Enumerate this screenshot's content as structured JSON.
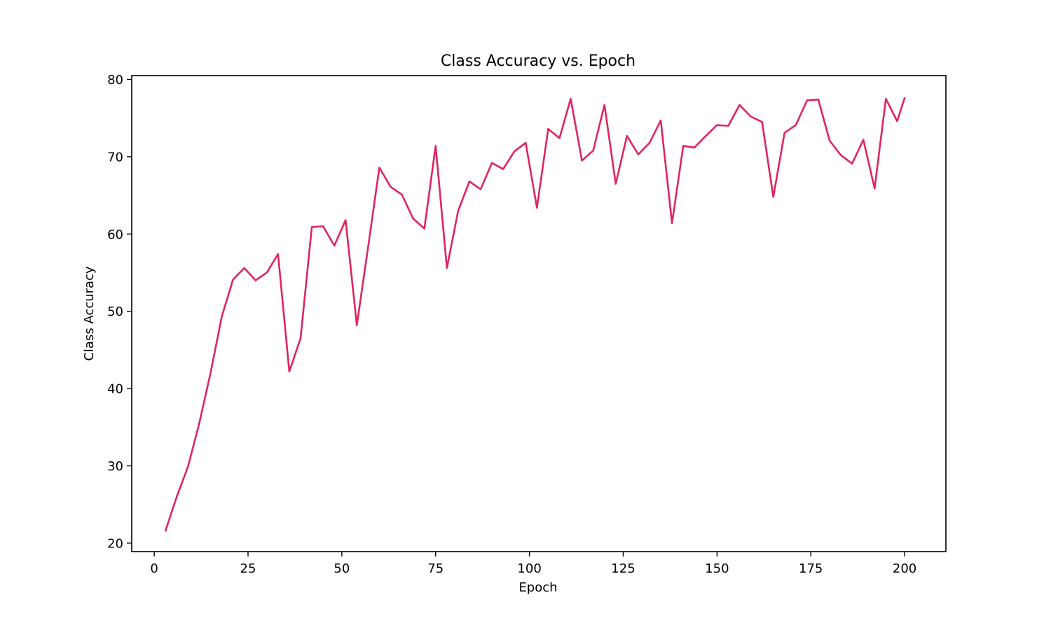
{
  "chart_data": {
    "type": "line",
    "title": "Class Accuracy vs. Epoch",
    "xlabel": "Epoch",
    "ylabel": "Class Accuracy",
    "xlim": [
      -6,
      211
    ],
    "ylim": [
      18.9,
      80.5
    ],
    "xticks": [
      0,
      25,
      50,
      75,
      100,
      125,
      150,
      175,
      200
    ],
    "yticks": [
      20,
      30,
      40,
      50,
      60,
      70,
      80
    ],
    "grid": false,
    "legend": "none",
    "series": [
      {
        "color": "#e0245e",
        "x": [
          3,
          6,
          9,
          12,
          15,
          18,
          21,
          24,
          27,
          30,
          33,
          36,
          39,
          42,
          45,
          48,
          51,
          54,
          57,
          60,
          63,
          66,
          69,
          72,
          75,
          78,
          81,
          84,
          87,
          90,
          93,
          96,
          99,
          102,
          105,
          108,
          111,
          114,
          117,
          120,
          123,
          126,
          129,
          132,
          135,
          138,
          141,
          144,
          147,
          150,
          153,
          156,
          159,
          162,
          165,
          168,
          171,
          174,
          177,
          180,
          183,
          186,
          189,
          192,
          195,
          198,
          200
        ],
        "y": [
          21.6,
          26.0,
          29.9,
          35.5,
          42.0,
          49.3,
          54.1,
          55.6,
          54.0,
          55.0,
          57.4,
          42.2,
          46.5,
          60.9,
          61.0,
          58.5,
          61.8,
          48.2,
          58.3,
          68.6,
          66.1,
          65.1,
          62.0,
          60.7,
          71.4,
          55.6,
          63.0,
          66.8,
          65.8,
          69.2,
          68.4,
          70.7,
          71.8,
          63.4,
          73.6,
          72.4,
          77.5,
          69.5,
          70.8,
          76.7,
          66.5,
          72.7,
          70.3,
          71.8,
          74.7,
          61.4,
          71.4,
          71.2,
          72.7,
          74.1,
          74.0,
          76.7,
          75.2,
          74.5,
          64.8,
          73.1,
          74.1,
          77.3,
          77.4,
          72.1,
          70.2,
          69.1,
          72.2,
          65.9,
          77.5,
          74.6,
          77.6
        ]
      }
    ]
  }
}
